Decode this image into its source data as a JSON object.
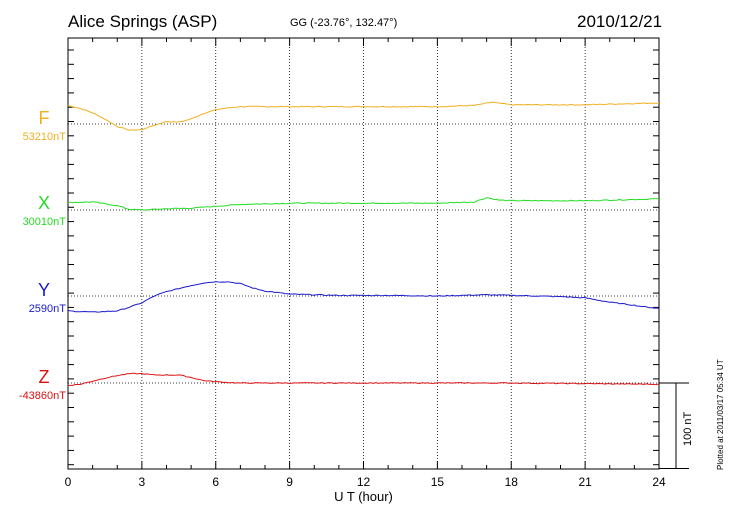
{
  "header": {
    "station": "Alice Springs (ASP)",
    "coords": "GG (-23.76°, 132.47°)",
    "date": "2010/12/21"
  },
  "footnote": "Plotted at 2011/03/17 05:34 UT",
  "colors": {
    "F": "#f0b020",
    "X": "#22dd22",
    "Y": "#1a1acc",
    "Z": "#dd1111"
  },
  "chart_data": {
    "type": "line",
    "xlabel": "U T (hour)",
    "xlim": [
      0,
      24
    ],
    "xticks": [
      0,
      3,
      6,
      9,
      12,
      15,
      18,
      21,
      24
    ],
    "scale_bar": {
      "label": "100 nT",
      "value_nT": 100
    },
    "series": [
      {
        "name": "F",
        "baseline": "53210nT",
        "base_value": 53210,
        "points": [
          [
            0,
            53240
          ],
          [
            0.5,
            53235
          ],
          [
            1.0,
            53228
          ],
          [
            1.5,
            53218
          ],
          [
            2.0,
            53206
          ],
          [
            2.5,
            53200
          ],
          [
            3.0,
            53201
          ],
          [
            3.5,
            53208
          ],
          [
            4.0,
            53214
          ],
          [
            4.5,
            53213
          ],
          [
            5.0,
            53218
          ],
          [
            5.5,
            53227
          ],
          [
            6.0,
            53233
          ],
          [
            6.5,
            53236
          ],
          [
            7.0,
            53238
          ],
          [
            9.0,
            53238
          ],
          [
            12.0,
            53238
          ],
          [
            15.0,
            53238
          ],
          [
            16.5,
            53240
          ],
          [
            17.2,
            53245
          ],
          [
            18.0,
            53241
          ],
          [
            21.0,
            53241
          ],
          [
            24.0,
            53244
          ]
        ]
      },
      {
        "name": "X",
        "baseline": "30010nT",
        "base_value": 30010,
        "points": [
          [
            0,
            30022
          ],
          [
            1.0,
            30023
          ],
          [
            2.0,
            30017
          ],
          [
            2.5,
            30011
          ],
          [
            3.0,
            30010
          ],
          [
            4.0,
            30012
          ],
          [
            5.0,
            30013
          ],
          [
            6.0,
            30016
          ],
          [
            7.0,
            30019
          ],
          [
            9.0,
            30021
          ],
          [
            12.0,
            30021
          ],
          [
            15.0,
            30021
          ],
          [
            16.5,
            30023
          ],
          [
            17.0,
            30030
          ],
          [
            17.5,
            30026
          ],
          [
            18.0,
            30025
          ],
          [
            21.0,
            30025
          ],
          [
            24.0,
            30028
          ]
        ]
      },
      {
        "name": "Y",
        "baseline": "2590nT",
        "base_value": 2590,
        "points": [
          [
            0,
            2566
          ],
          [
            1.0,
            2564
          ],
          [
            2.0,
            2566
          ],
          [
            2.5,
            2572
          ],
          [
            3.0,
            2579
          ],
          [
            3.5,
            2590
          ],
          [
            4.0,
            2597
          ],
          [
            4.5,
            2602
          ],
          [
            5.0,
            2607
          ],
          [
            5.5,
            2611
          ],
          [
            6.0,
            2613
          ],
          [
            6.5,
            2613
          ],
          [
            7.0,
            2610
          ],
          [
            7.5,
            2603
          ],
          [
            8.0,
            2598
          ],
          [
            9.0,
            2593
          ],
          [
            11.0,
            2591
          ],
          [
            13.0,
            2591
          ],
          [
            15.0,
            2590
          ],
          [
            16.0,
            2591
          ],
          [
            17.0,
            2592
          ],
          [
            18.0,
            2591
          ],
          [
            20.0,
            2589
          ],
          [
            21.0,
            2587
          ],
          [
            22.0,
            2580
          ],
          [
            23.0,
            2575
          ],
          [
            23.5,
            2572
          ],
          [
            24.0,
            2570
          ]
        ]
      },
      {
        "name": "Z",
        "baseline": "-43860nT",
        "base_value": -43860,
        "points": [
          [
            0,
            -43864
          ],
          [
            0.5,
            -43862
          ],
          [
            1.0,
            -43857
          ],
          [
            1.5,
            -43852
          ],
          [
            2.0,
            -43848
          ],
          [
            2.5,
            -43845
          ],
          [
            3.0,
            -43845
          ],
          [
            3.5,
            -43847
          ],
          [
            4.5,
            -43847
          ],
          [
            5.0,
            -43851
          ],
          [
            5.5,
            -43856
          ],
          [
            6.0,
            -43858
          ],
          [
            7.0,
            -43860
          ],
          [
            9.0,
            -43860
          ],
          [
            15.0,
            -43860
          ],
          [
            18.0,
            -43860
          ],
          [
            21.0,
            -43861
          ],
          [
            24.0,
            -43862
          ]
        ]
      }
    ]
  }
}
